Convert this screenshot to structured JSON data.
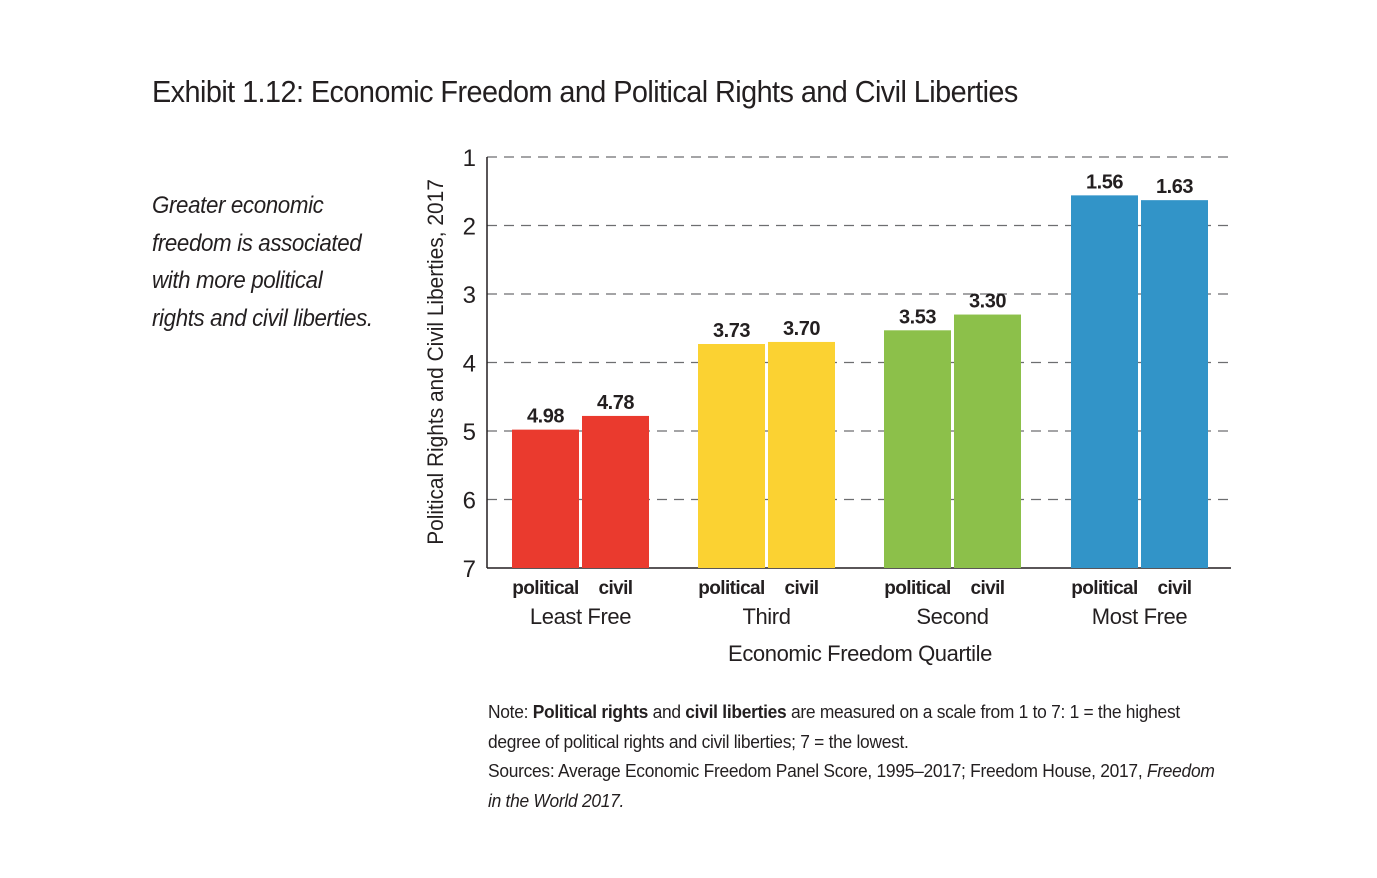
{
  "title": "Exhibit 1.12: Economic Freedom and Political Rights and Civil Liberties",
  "sidebar_text": "Greater economic freedom is associated with more political rights and civil liberties.",
  "note": {
    "prefix": "Note: ",
    "bold1": "Political rights",
    "mid1": " and ",
    "bold2": "civil liberties",
    "rest": " are measured on a scale from 1 to 7: 1 = the highest degree of political rights and civil liberties; 7 = the lowest.",
    "sources": "Sources: Average Economic Freedom Panel Score, 1995–2017; Freedom House, 2017, ",
    "sources_italic": "Freedom in the World 2017."
  },
  "chart_data": {
    "type": "bar",
    "title": "Exhibit 1.12: Economic Freedom and Political Rights and Civil Liberties",
    "xlabel": "Economic Freedom Quartile",
    "ylabel": "Political Rights and Civil Liberties, 2017",
    "ylim": [
      1,
      7
    ],
    "y_inverted": true,
    "yticks": [
      1,
      2,
      3,
      4,
      5,
      6,
      7
    ],
    "grid": "horizontal dashed",
    "categories": [
      "Least Free",
      "Third",
      "Second",
      "Most Free"
    ],
    "bar_labels": [
      "political",
      "civil"
    ],
    "colors": [
      "#ea3a2e",
      "#fbd232",
      "#8cc04a",
      "#3294c8"
    ],
    "series": [
      {
        "name": "political",
        "values": [
          4.98,
          3.73,
          3.53,
          1.56
        ]
      },
      {
        "name": "civil",
        "values": [
          4.78,
          3.7,
          3.3,
          1.63
        ]
      }
    ],
    "data_labels": [
      [
        "4.98",
        "4.78"
      ],
      [
        "3.73",
        "3.70"
      ],
      [
        "3.53",
        "3.30"
      ],
      [
        "1.56",
        "1.63"
      ]
    ]
  }
}
